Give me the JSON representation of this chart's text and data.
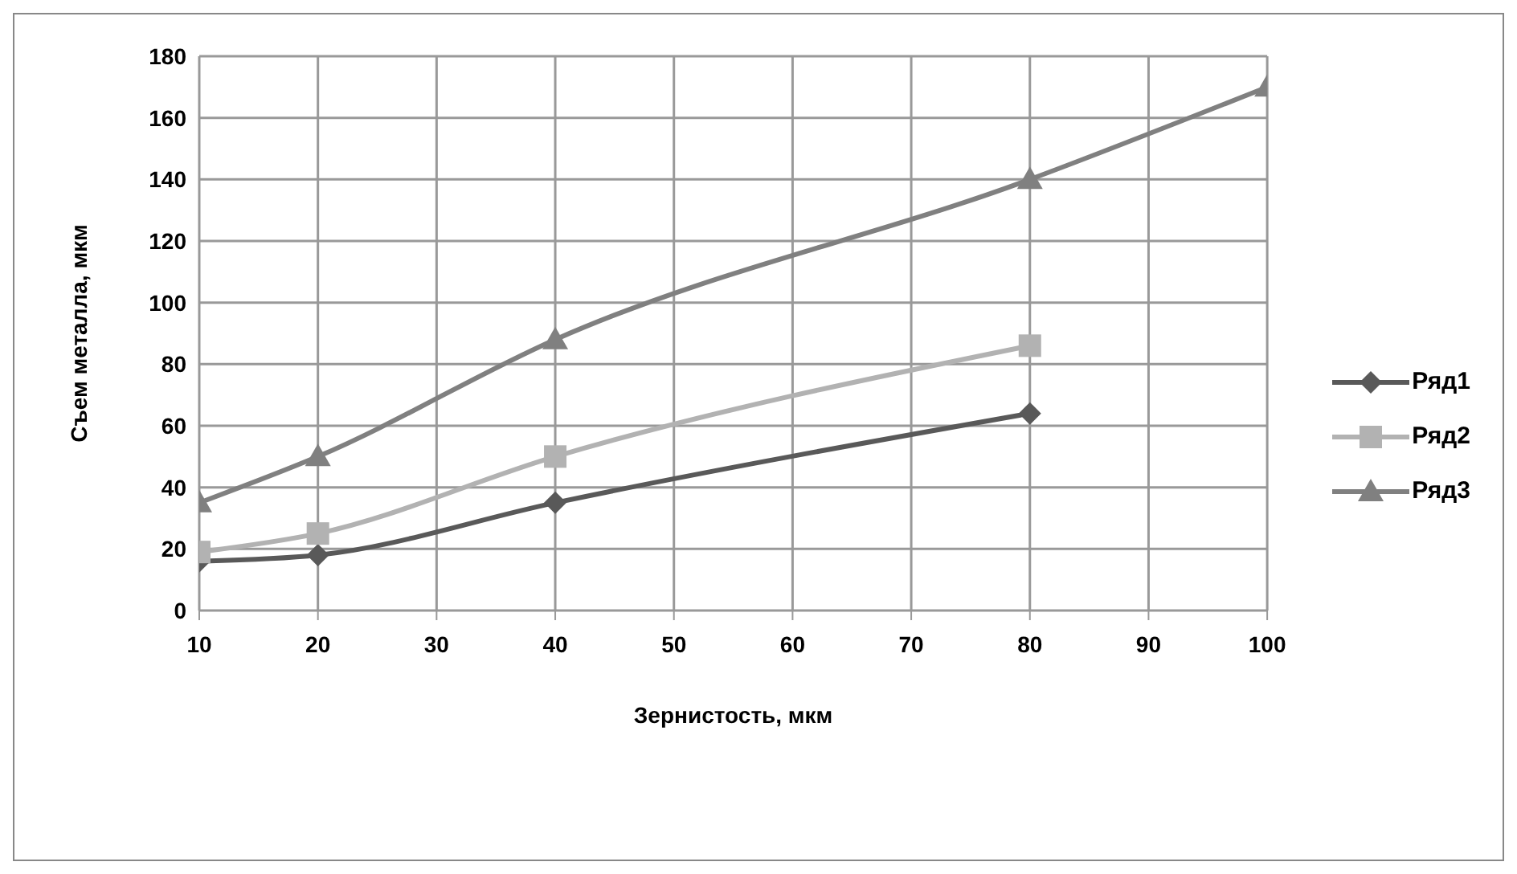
{
  "chart_data": {
    "type": "line",
    "xlabel": "Зернистость, мкм",
    "ylabel": "Съем металла, мкм",
    "x": [
      10,
      20,
      40,
      80,
      100
    ],
    "xlim": [
      10,
      100
    ],
    "xticks": [
      10,
      20,
      30,
      40,
      50,
      60,
      70,
      80,
      90,
      100
    ],
    "ylim": [
      0,
      180
    ],
    "yticks": [
      0,
      20,
      40,
      60,
      80,
      100,
      120,
      140,
      160,
      180
    ],
    "grid": true,
    "legend": "right",
    "series": [
      {
        "name": "Ряд1",
        "color": "#595959",
        "marker": "diamond",
        "values": [
          16,
          18,
          35,
          64,
          null
        ]
      },
      {
        "name": "Ряд2",
        "color": "#b2b2b2",
        "marker": "square",
        "values": [
          19,
          25,
          50,
          86,
          null
        ]
      },
      {
        "name": "Ряд3",
        "color": "#808080",
        "marker": "triangle",
        "values": [
          35,
          50,
          88,
          140,
          170
        ]
      }
    ]
  }
}
